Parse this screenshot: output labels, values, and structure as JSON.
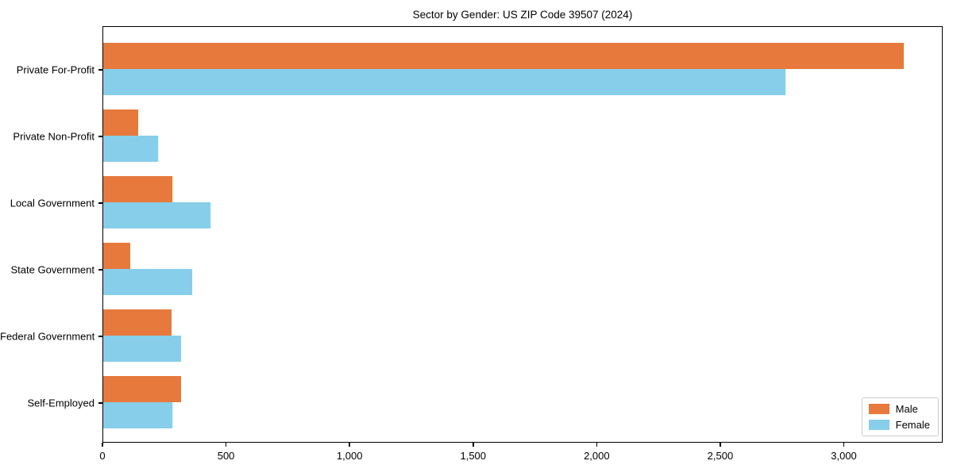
{
  "chart_data": {
    "type": "bar",
    "orientation": "horizontal",
    "title": "Sector by Gender: US ZIP Code 39507 (2024)",
    "categories": [
      "Private For-Profit",
      "Private Non-Profit",
      "Local Government",
      "State Government",
      "Federal Government",
      "Self-Employed"
    ],
    "series": [
      {
        "name": "Male",
        "color": "#e8793d",
        "values": [
          3240,
          140,
          280,
          110,
          275,
          315
        ]
      },
      {
        "name": "Female",
        "color": "#87ceeb",
        "values": [
          2760,
          220,
          435,
          360,
          315,
          280
        ]
      }
    ],
    "xlabel": "",
    "ylabel": "",
    "xlim": [
      0,
      3400
    ],
    "xticks": [
      0,
      500,
      1000,
      1500,
      2000,
      2500,
      3000
    ],
    "xtick_labels": [
      "0",
      "500",
      "1,000",
      "1,500",
      "2,000",
      "2,500",
      "3,000"
    ],
    "grid": false,
    "legend_position": "lower right",
    "plot_border_color": "#000000",
    "background_color": "#ffffff"
  }
}
